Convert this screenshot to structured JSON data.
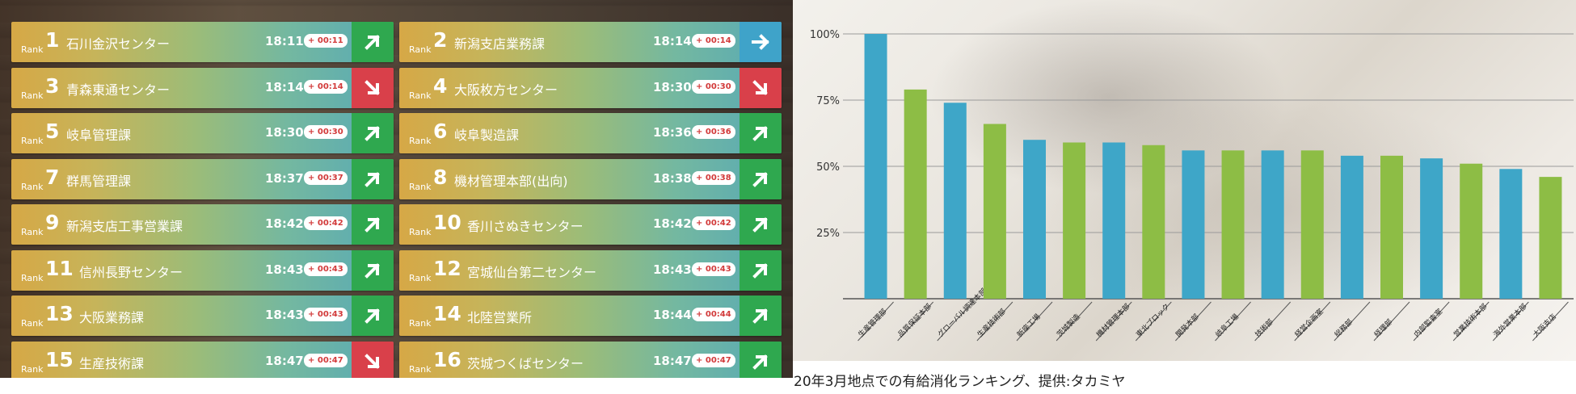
{
  "ranking": [
    {
      "rank_word": "Rank",
      "rank": "1",
      "name": "石川金沢センター",
      "time": "18:11",
      "delta": "+ 00:11",
      "trend": "up"
    },
    {
      "rank_word": "Rank",
      "rank": "2",
      "name": "新潟支店業務課",
      "time": "18:14",
      "delta": "+ 00:14",
      "trend": "flat"
    },
    {
      "rank_word": "Rank",
      "rank": "3",
      "name": "青森東通センター",
      "time": "18:14",
      "delta": "+ 00:14",
      "trend": "down"
    },
    {
      "rank_word": "Rank",
      "rank": "4",
      "name": "大阪枚方センター",
      "time": "18:30",
      "delta": "+ 00:30",
      "trend": "down"
    },
    {
      "rank_word": "Rank",
      "rank": "5",
      "name": "岐阜管理課",
      "time": "18:30",
      "delta": "+ 00:30",
      "trend": "up"
    },
    {
      "rank_word": "Rank",
      "rank": "6",
      "name": "岐阜製造課",
      "time": "18:36",
      "delta": "+ 00:36",
      "trend": "up"
    },
    {
      "rank_word": "Rank",
      "rank": "7",
      "name": "群馬管理課",
      "time": "18:37",
      "delta": "+ 00:37",
      "trend": "up"
    },
    {
      "rank_word": "Rank",
      "rank": "8",
      "name": "機材管理本部(出向)",
      "time": "18:38",
      "delta": "+ 00:38",
      "trend": "up"
    },
    {
      "rank_word": "Rank",
      "rank": "9",
      "name": "新潟支店工事営業課",
      "time": "18:42",
      "delta": "+ 00:42",
      "trend": "up"
    },
    {
      "rank_word": "Rank",
      "rank": "10",
      "name": "香川さぬきセンター",
      "time": "18:42",
      "delta": "+ 00:42",
      "trend": "up"
    },
    {
      "rank_word": "Rank",
      "rank": "11",
      "name": "信州長野センター",
      "time": "18:43",
      "delta": "+ 00:43",
      "trend": "up"
    },
    {
      "rank_word": "Rank",
      "rank": "12",
      "name": "宮城仙台第二センター",
      "time": "18:43",
      "delta": "+ 00:43",
      "trend": "up"
    },
    {
      "rank_word": "Rank",
      "rank": "13",
      "name": "大阪業務課",
      "time": "18:43",
      "delta": "+ 00:43",
      "trend": "up"
    },
    {
      "rank_word": "Rank",
      "rank": "14",
      "name": "北陸営業所",
      "time": "18:44",
      "delta": "+ 00:44",
      "trend": "up"
    },
    {
      "rank_word": "Rank",
      "rank": "15",
      "name": "生産技術課",
      "time": "18:47",
      "delta": "+ 00:47",
      "trend": "down"
    },
    {
      "rank_word": "Rank",
      "rank": "16",
      "name": "茨城つくばセンター",
      "time": "18:47",
      "delta": "+ 00:47",
      "trend": "up"
    }
  ],
  "colors": {
    "up": "#2fa84f",
    "down": "#d9404a",
    "flat": "#3fa3c9",
    "bar_blue": "#3ea6c8",
    "bar_green": "#8dbd45"
  },
  "chart_data": {
    "type": "bar",
    "title": "",
    "xlabel": "",
    "ylabel": "",
    "ylim": [
      0,
      100
    ],
    "yticks": [
      "100%",
      "75%",
      "50%",
      "25%"
    ],
    "ytick_values": [
      100,
      75,
      50,
      25
    ],
    "grid": true,
    "categories": [
      "生産管理部",
      "品質保証本部",
      "グローバル調達本部",
      "生産技術部",
      "新座工場",
      "茨城製造",
      "機材管理本部",
      "東北ブロック",
      "開発本部",
      "岐阜工場",
      "技術部",
      "経営企画室",
      "総務部",
      "経理部",
      "内部監査室",
      "営業技術本部",
      "海外営業本部",
      "大阪支店"
    ],
    "values": [
      100,
      79,
      74,
      66,
      60,
      59,
      59,
      58,
      56,
      56,
      56,
      56,
      54,
      54,
      53,
      51,
      49,
      46
    ],
    "bar_colors": [
      "blue",
      "green",
      "blue",
      "green",
      "blue",
      "green",
      "blue",
      "green",
      "blue",
      "green",
      "blue",
      "green",
      "blue",
      "green",
      "blue",
      "green",
      "blue",
      "green"
    ]
  },
  "caption": "20年3月地点での有給消化ランキング、提供:タカミヤ"
}
